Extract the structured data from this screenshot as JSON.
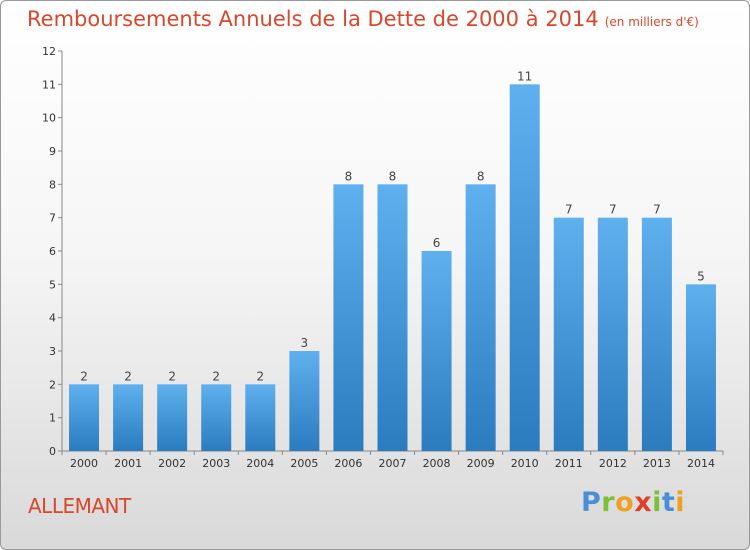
{
  "header": {
    "title": "Remboursements Annuels de la Dette de 2000 à 2014",
    "unit": "(en milliers d'€)"
  },
  "footer": {
    "city": "ALLEMANT",
    "logo": "Proxiti"
  },
  "colors": {
    "bar_top": "#5fb0ee",
    "bar_bottom": "#2a7cbf",
    "title": "#d9472b"
  },
  "chart_data": {
    "type": "bar",
    "title": "Remboursements Annuels de la Dette de 2000 à 2014",
    "xlabel": "",
    "ylabel": "",
    "categories": [
      "2000",
      "2001",
      "2002",
      "2003",
      "2004",
      "2005",
      "2006",
      "2007",
      "2008",
      "2009",
      "2010",
      "2011",
      "2012",
      "2013",
      "2014"
    ],
    "values": [
      2,
      2,
      2,
      2,
      2,
      3,
      8,
      8,
      6,
      8,
      11,
      7,
      7,
      7,
      5
    ],
    "ylim": [
      0,
      12
    ],
    "yticks": [
      0,
      1,
      2,
      3,
      4,
      5,
      6,
      7,
      8,
      9,
      10,
      11,
      12
    ],
    "grid": false,
    "data_labels": true
  }
}
